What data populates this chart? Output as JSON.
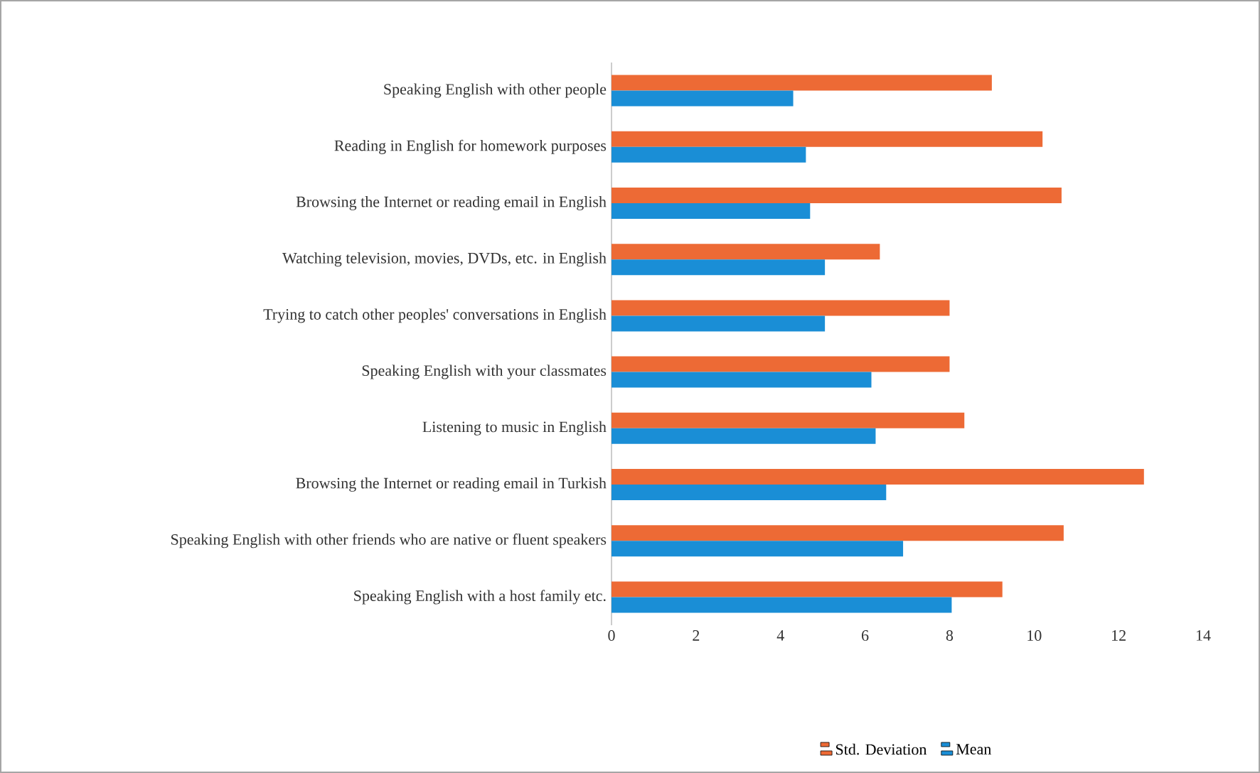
{
  "chart_data": {
    "type": "bar",
    "orientation": "horizontal",
    "categories": [
      "Speaking English with other people",
      "Reading in English for homework purposes",
      "Browsing the Internet or reading email in English",
      "Watching television, movies, DVDs, etc. in English",
      "Trying to catch other peoples' conversations in English",
      "Speaking English with your classmates",
      "Listening to music in English",
      "Browsing the Internet or reading email in Turkish",
      "Speaking English with other friends who are native or fluent speakers",
      "Speaking English with a host family etc."
    ],
    "series": [
      {
        "name": "Std. Deviation",
        "color": "#ed6a35",
        "values": [
          9.0,
          10.2,
          10.65,
          6.35,
          8.0,
          8.0,
          8.35,
          12.6,
          10.7,
          9.25
        ]
      },
      {
        "name": "Mean",
        "color": "#1a8ed6",
        "values": [
          4.3,
          4.6,
          4.7,
          5.05,
          5.05,
          6.15,
          6.25,
          6.5,
          6.9,
          8.05
        ]
      }
    ],
    "xlim": [
      0,
      14
    ],
    "xticks": [
      0,
      2,
      4,
      6,
      8,
      10,
      12,
      14
    ],
    "legend": "bottom",
    "grid": false
  }
}
